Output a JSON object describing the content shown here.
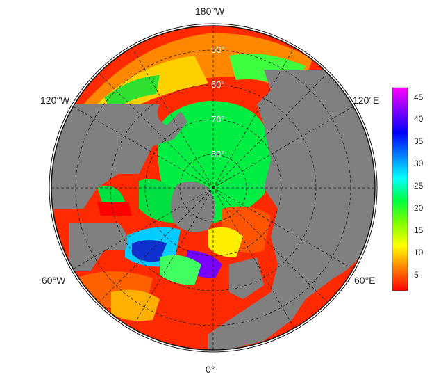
{
  "map": {
    "projection": "north polar stereographic",
    "land_color": "#808080",
    "longitude_labels": [
      "180°W",
      "120°W",
      "120°E",
      "60°W",
      "60°E",
      "0°"
    ],
    "latitude_labels": [
      "50°",
      "60°",
      "70°",
      "80°"
    ]
  },
  "colorbar": {
    "ticks": [
      "45",
      "40",
      "35",
      "30",
      "25",
      "20",
      "15",
      "10",
      "5"
    ],
    "range": [
      1,
      47
    ],
    "colors": [
      "#ff0000",
      "#ff8000",
      "#ffff00",
      "#80ff00",
      "#00ff40",
      "#00ffff",
      "#0080ff",
      "#0000ff",
      "#8000ff",
      "#ff00ff"
    ]
  }
}
